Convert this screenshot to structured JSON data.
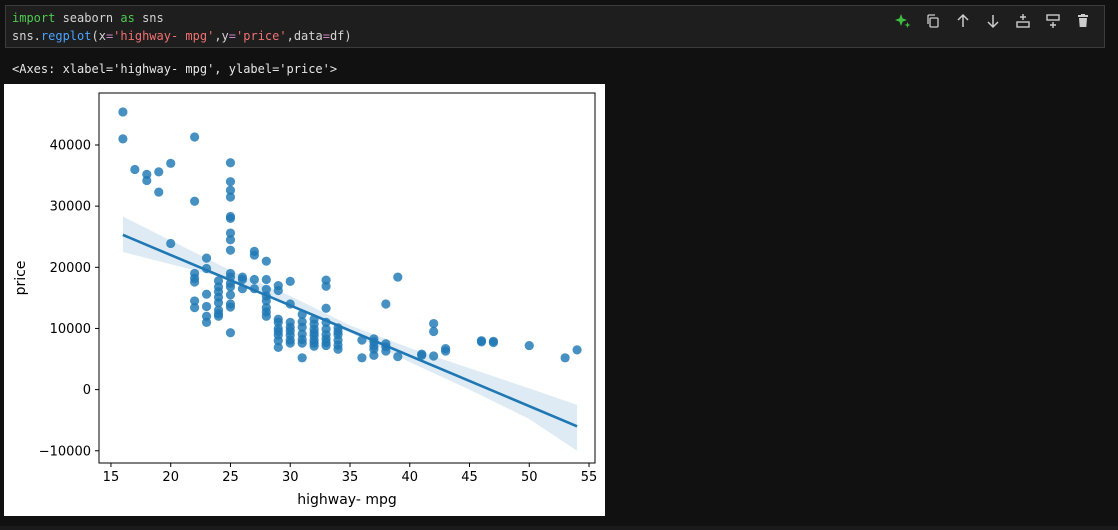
{
  "cell": {
    "code": {
      "line1": {
        "kw_import": "import",
        "mod": " seaborn ",
        "kw_as": "as",
        "alias": " sns"
      },
      "line2": {
        "obj": "sns.",
        "fn": "regplot",
        "open": "(x",
        "eq1": "=",
        "xval": "'highway- mpg'",
        "sep1": ",y",
        "eq2": "=",
        "yval": "'price'",
        "sep2": ",data",
        "eq3": "=",
        "rest": "df)"
      }
    },
    "toolbar": [
      {
        "name": "gemini-sparkle-icon",
        "color": "#3fbf3f"
      },
      {
        "name": "copy-cell-icon",
        "color": "#cccccc"
      },
      {
        "name": "move-up-icon",
        "color": "#cccccc"
      },
      {
        "name": "move-down-icon",
        "color": "#cccccc"
      },
      {
        "name": "add-above-icon",
        "color": "#cccccc"
      },
      {
        "name": "add-below-icon",
        "color": "#cccccc"
      },
      {
        "name": "delete-icon",
        "color": "#cccccc"
      }
    ]
  },
  "output": {
    "text": "<Axes: xlabel='highway- mpg', ylabel='price'>"
  },
  "chart_data": {
    "type": "scatter",
    "xlabel": "highway- mpg",
    "ylabel": "price",
    "xlim": [
      14,
      55.5
    ],
    "ylim": [
      -12000,
      48500
    ],
    "xticks": [
      15,
      20,
      25,
      30,
      35,
      40,
      45,
      50,
      55
    ],
    "yticks": [
      -10000,
      0,
      10000,
      20000,
      30000,
      40000
    ],
    "grid": false,
    "point_color": "#1f77b4",
    "line_color": "#1f77b4",
    "regression": {
      "x": [
        16,
        54
      ],
      "y": [
        25300,
        -6000
      ]
    },
    "ci_band": {
      "x": [
        16,
        25,
        30,
        35,
        40,
        45,
        50,
        54
      ],
      "lower": [
        22500,
        18000,
        13800,
        9300,
        4500,
        0,
        -4800,
        -10000
      ],
      "upper": [
        28300,
        19500,
        15300,
        10500,
        6800,
        3500,
        200,
        -2500
      ]
    },
    "points": [
      [
        16,
        45400
      ],
      [
        16,
        41000
      ],
      [
        17,
        36000
      ],
      [
        18,
        35200
      ],
      [
        18,
        34200
      ],
      [
        19,
        35600
      ],
      [
        19,
        32300
      ],
      [
        20,
        37000
      ],
      [
        20,
        23900
      ],
      [
        22,
        41300
      ],
      [
        22,
        30800
      ],
      [
        22,
        19000
      ],
      [
        22,
        18200
      ],
      [
        22,
        17600
      ],
      [
        22,
        14500
      ],
      [
        22,
        13400
      ],
      [
        23,
        21500
      ],
      [
        23,
        19800
      ],
      [
        23,
        15600
      ],
      [
        23,
        13600
      ],
      [
        23,
        12000
      ],
      [
        23,
        11000
      ],
      [
        24,
        17800
      ],
      [
        24,
        16800
      ],
      [
        24,
        16000
      ],
      [
        24,
        15100
      ],
      [
        24,
        14200
      ],
      [
        24,
        13000
      ],
      [
        24,
        12400
      ],
      [
        24,
        12000
      ],
      [
        25,
        37100
      ],
      [
        25,
        34000
      ],
      [
        25,
        32600
      ],
      [
        25,
        31500
      ],
      [
        25,
        28300
      ],
      [
        25,
        28000
      ],
      [
        25,
        25600
      ],
      [
        25,
        24500
      ],
      [
        25,
        22800
      ],
      [
        25,
        19000
      ],
      [
        25,
        18400
      ],
      [
        25,
        17400
      ],
      [
        25,
        16800
      ],
      [
        25,
        15500
      ],
      [
        25,
        14000
      ],
      [
        25,
        13500
      ],
      [
        25,
        9300
      ],
      [
        26,
        18400
      ],
      [
        26,
        18000
      ],
      [
        26,
        16500
      ],
      [
        27,
        22600
      ],
      [
        27,
        22000
      ],
      [
        27,
        18000
      ],
      [
        27,
        16500
      ],
      [
        28,
        21000
      ],
      [
        28,
        18000
      ],
      [
        28,
        16400
      ],
      [
        28,
        15300
      ],
      [
        28,
        14500
      ],
      [
        28,
        13400
      ],
      [
        28,
        12700
      ],
      [
        28,
        12000
      ],
      [
        29,
        17000
      ],
      [
        29,
        16200
      ],
      [
        29,
        11500
      ],
      [
        29,
        11000
      ],
      [
        29,
        10000
      ],
      [
        29,
        9500
      ],
      [
        29,
        8900
      ],
      [
        29,
        8000
      ],
      [
        29,
        6900
      ],
      [
        30,
        17700
      ],
      [
        30,
        14000
      ],
      [
        30,
        11000
      ],
      [
        30,
        10200
      ],
      [
        30,
        9600
      ],
      [
        30,
        8900
      ],
      [
        30,
        8100
      ],
      [
        30,
        7600
      ],
      [
        31,
        12300
      ],
      [
        31,
        11100
      ],
      [
        31,
        10200
      ],
      [
        31,
        9100
      ],
      [
        31,
        8200
      ],
      [
        31,
        7600
      ],
      [
        31,
        5200
      ],
      [
        32,
        11500
      ],
      [
        32,
        10700
      ],
      [
        32,
        9900
      ],
      [
        32,
        9300
      ],
      [
        32,
        8800
      ],
      [
        32,
        8100
      ],
      [
        32,
        7600
      ],
      [
        32,
        7100
      ],
      [
        33,
        17900
      ],
      [
        33,
        16900
      ],
      [
        33,
        13300
      ],
      [
        33,
        11000
      ],
      [
        33,
        9900
      ],
      [
        33,
        9000
      ],
      [
        33,
        8300
      ],
      [
        33,
        7700
      ],
      [
        33,
        7200
      ],
      [
        34,
        10100
      ],
      [
        34,
        9500
      ],
      [
        34,
        9000
      ],
      [
        34,
        8100
      ],
      [
        34,
        7300
      ],
      [
        34,
        6600
      ],
      [
        36,
        8100
      ],
      [
        36,
        5200
      ],
      [
        37,
        8300
      ],
      [
        37,
        7800
      ],
      [
        37,
        7100
      ],
      [
        37,
        6600
      ],
      [
        37,
        5600
      ],
      [
        38,
        14000
      ],
      [
        38,
        7500
      ],
      [
        38,
        7000
      ],
      [
        38,
        6300
      ],
      [
        39,
        18400
      ],
      [
        39,
        5400
      ],
      [
        41,
        5800
      ],
      [
        41,
        5600
      ],
      [
        42,
        10800
      ],
      [
        42,
        9500
      ],
      [
        42,
        5500
      ],
      [
        43,
        6700
      ],
      [
        43,
        6300
      ],
      [
        46,
        8000
      ],
      [
        46,
        7800
      ],
      [
        47,
        7900
      ],
      [
        47,
        7700
      ],
      [
        50,
        7200
      ],
      [
        53,
        5200
      ],
      [
        54,
        6500
      ]
    ]
  }
}
